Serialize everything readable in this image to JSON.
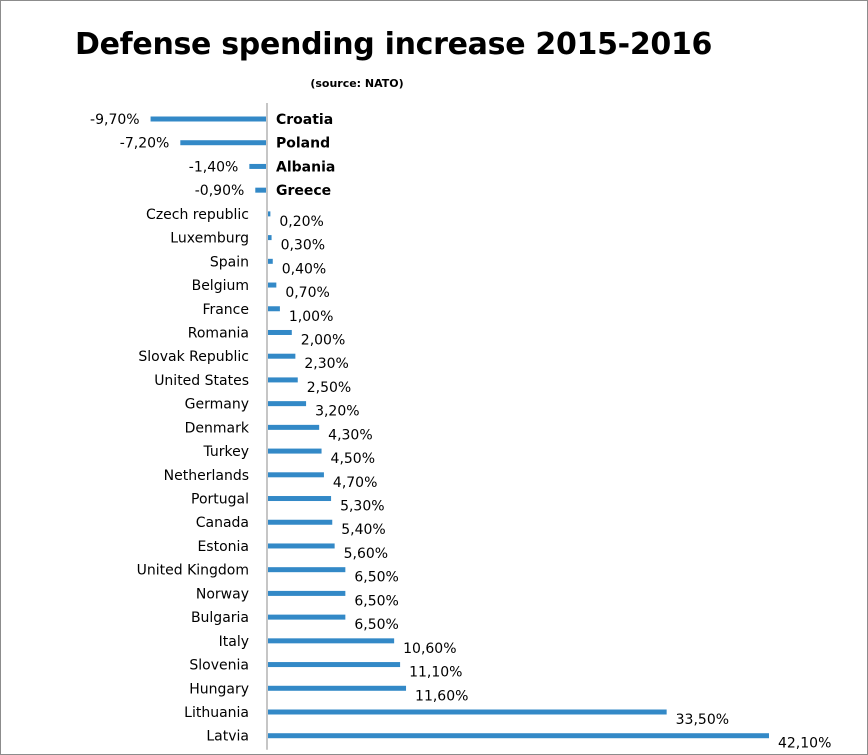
{
  "chart_data": {
    "type": "bar",
    "orientation": "horizontal",
    "title": "Defense spending increase 2015-2016",
    "subtitle": "(source: NATO)",
    "bar_color": "#3389c7",
    "categories": [
      "Croatia",
      "Poland",
      "Albania",
      "Greece",
      "Czech republic",
      "Luxemburg",
      "Spain",
      "Belgium",
      "France",
      "Romania",
      "Slovak Republic",
      "United States",
      "Germany",
      "Denmark",
      "Turkey",
      "Netherlands",
      "Portugal",
      "Canada",
      "Estonia",
      "United Kingdom",
      "Norway",
      "Bulgaria",
      "Italy",
      "Slovenia",
      "Hungary",
      "Lithuania",
      "Latvia"
    ],
    "values": [
      -9.7,
      -7.2,
      -1.4,
      -0.9,
      0.2,
      0.3,
      0.4,
      0.7,
      1.0,
      2.0,
      2.3,
      2.5,
      3.2,
      4.3,
      4.5,
      4.7,
      5.3,
      5.4,
      5.6,
      6.5,
      6.5,
      6.5,
      10.6,
      11.1,
      11.6,
      33.5,
      42.1
    ],
    "value_labels": [
      "-9,70%",
      "-7,20%",
      "-1,40%",
      "-0,90%",
      "0,20%",
      "0,30%",
      "0,40%",
      "0,70%",
      "1,00%",
      "2,00%",
      "2,30%",
      "2,50%",
      "3,20%",
      "4,30%",
      "4,50%",
      "4,70%",
      "5,30%",
      "5,40%",
      "5,60%",
      "6,50%",
      "6,50%",
      "6,50%",
      "10,60%",
      "11,10%",
      "11,60%",
      "33,50%",
      "42,10%"
    ]
  }
}
